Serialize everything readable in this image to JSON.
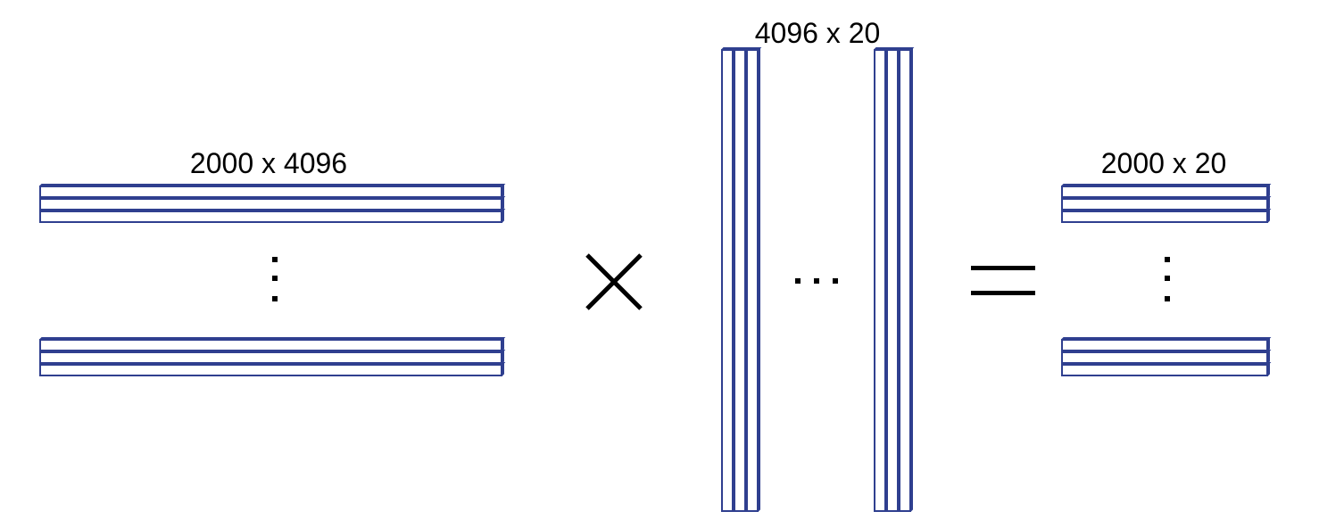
{
  "colors": {
    "bar_stroke": "#2f3f8f",
    "operator": "#000000",
    "background": "#ffffff"
  },
  "matrices": {
    "left": {
      "label": "2000 x 4096"
    },
    "middle": {
      "label": "4096 x 20"
    },
    "right": {
      "label": "2000 x 20"
    }
  },
  "operators": {
    "multiply": "multiply-sign",
    "equals": "equals-sign"
  }
}
